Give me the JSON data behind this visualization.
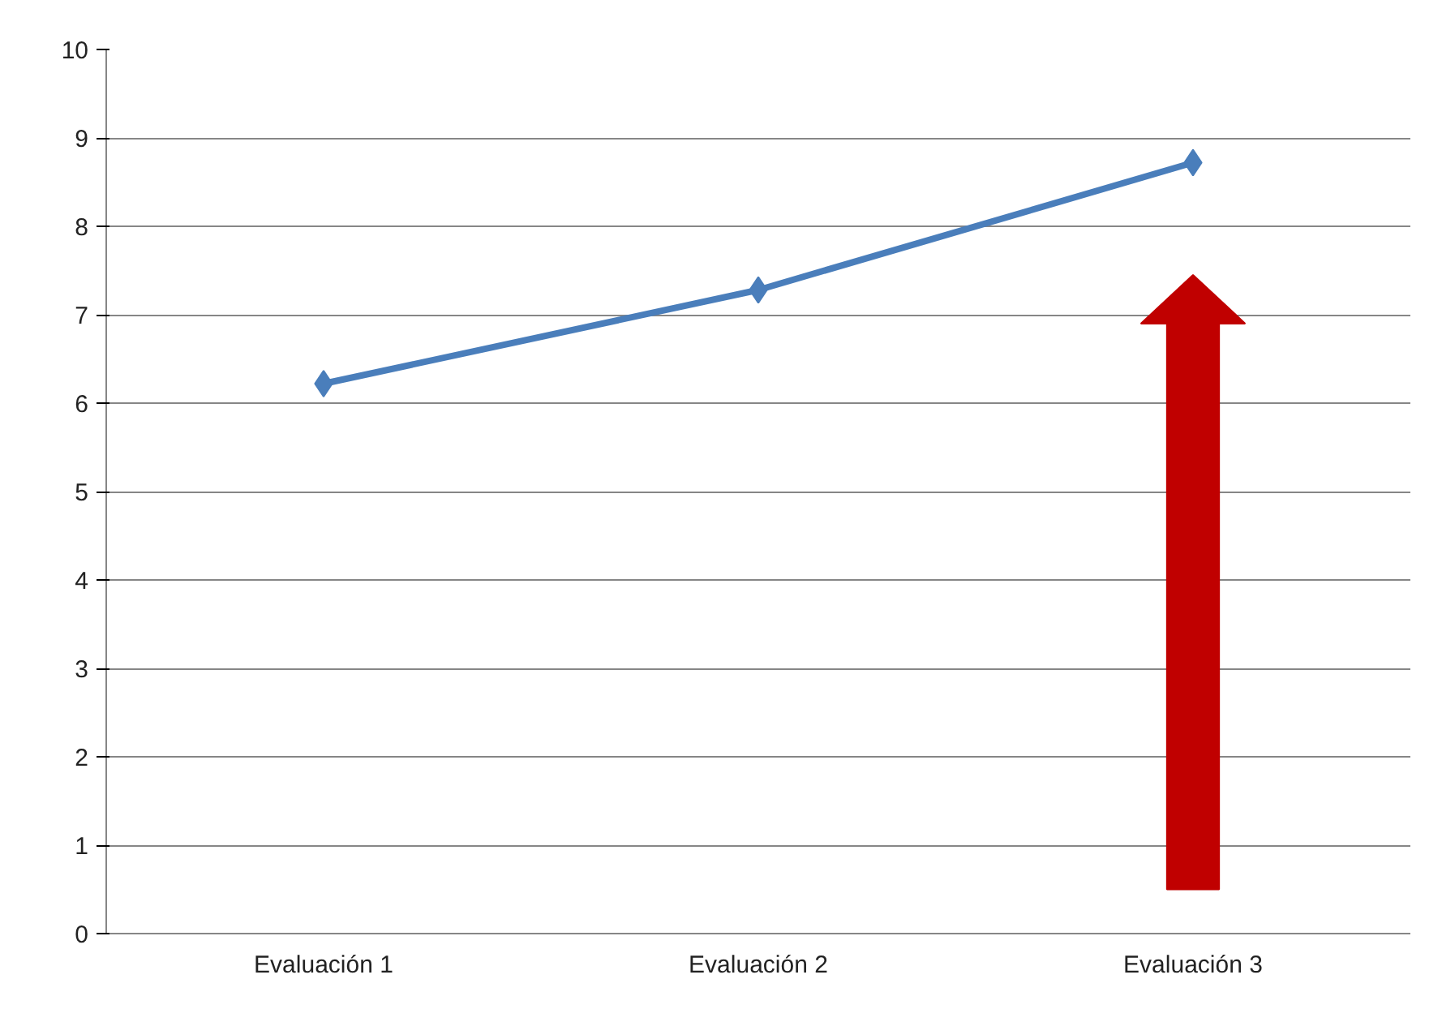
{
  "chart_data": {
    "type": "line",
    "categories": [
      "Evaluación 1",
      "Evaluación 2",
      "Evaluación 3"
    ],
    "series": [
      {
        "color": "#4a7ebb",
        "values": [
          6.22,
          7.28,
          8.72
        ]
      }
    ],
    "ylim": [
      0,
      10
    ],
    "yticks": [
      0,
      1,
      2,
      3,
      4,
      5,
      6,
      7,
      8,
      9,
      10
    ],
    "grid": "y",
    "marker": "diamond",
    "line_style": "solid"
  }
}
